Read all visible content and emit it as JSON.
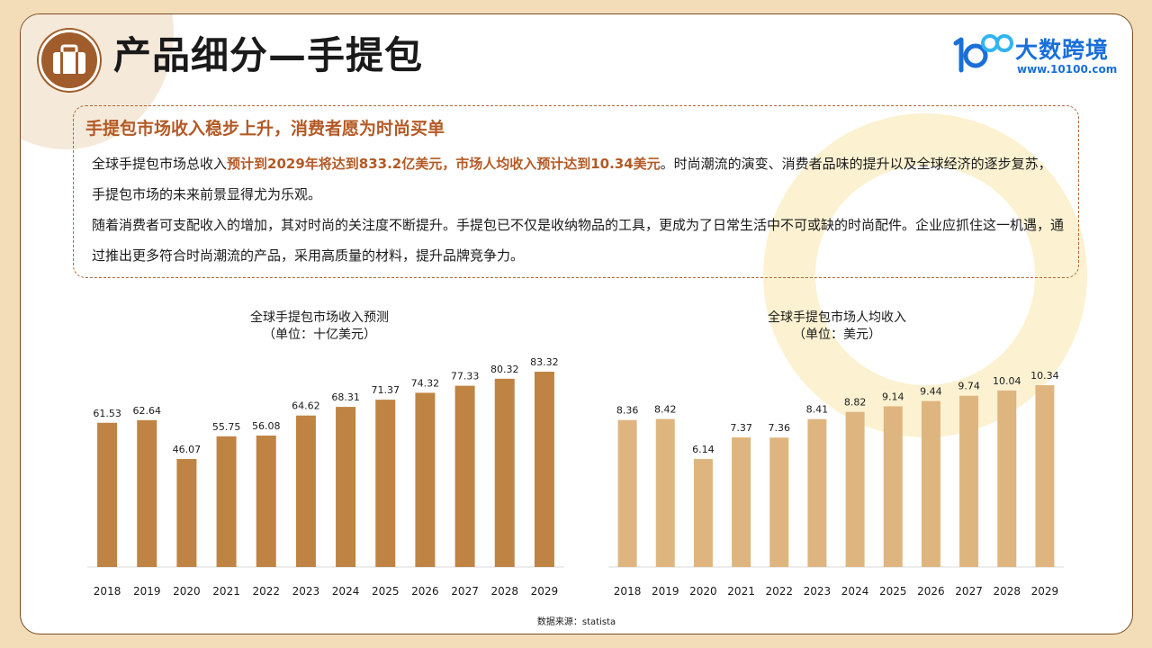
{
  "header": {
    "title": "产品细分—手提包",
    "icon": "briefcase-icon",
    "logo": {
      "text": "大数跨境",
      "url": "www.10100.com",
      "mark": "10100"
    }
  },
  "summary": {
    "heading": "手提包市场收入稳步上升，消费者愿为时尚买单",
    "p1_prefix": "全球手提包市场总收入",
    "p1_highlight": "预计到2029年将达到833.2亿美元，市场人均收入预计达到10.34美元",
    "p1_suffix": "。时尚潮流的演变、消费者品味的提升以及全球经济的逐步复苏，手提包市场的未来前景显得尤为乐观。",
    "p2": "随着消费者可支配收入的增加，其对时尚的关注度不断提升。手提包已不仅是收纳物品的工具，更成为了日常生活中不可或缺的时尚配件。企业应抓住这一机遇，通过推出更多符合时尚潮流的产品，采用高质量的材料，提升品牌竞争力。"
  },
  "source": "数据来源：statista",
  "colors": {
    "accent": "#b35a26",
    "bar_revenue": "#bf8443",
    "bar_per_capita": "#dfb57f",
    "icon_bg": "#a05d2b",
    "logo_blue": "#1a6fd8"
  },
  "chart_data": [
    {
      "type": "bar",
      "title": "全球手提包市场收入预测",
      "subtitle": "（单位：十亿美元）",
      "categories": [
        "2018",
        "2019",
        "2020",
        "2021",
        "2022",
        "2023",
        "2024",
        "2025",
        "2026",
        "2027",
        "2028",
        "2029"
      ],
      "values": [
        61.53,
        62.64,
        46.07,
        55.75,
        56.08,
        64.62,
        68.31,
        71.37,
        74.32,
        77.33,
        80.32,
        83.32
      ],
      "value_labels": [
        "61.53",
        "62.64",
        "46.07",
        "55.75",
        "56.08",
        "64.62",
        "68.31",
        "71.37",
        "74.32",
        "77.33",
        "80.32",
        "83.32"
      ],
      "ylim": [
        0,
        83.32
      ],
      "grid": false,
      "color": "#bf8443"
    },
    {
      "type": "bar",
      "title": "全球手提包市场人均收入",
      "subtitle": "（单位：美元）",
      "categories": [
        "2018",
        "2019",
        "2020",
        "2021",
        "2022",
        "2023",
        "2024",
        "2025",
        "2026",
        "2027",
        "2028",
        "2029"
      ],
      "values": [
        8.36,
        8.42,
        6.14,
        7.37,
        7.36,
        8.41,
        8.82,
        9.14,
        9.44,
        9.74,
        10.04,
        10.34
      ],
      "value_labels": [
        "8.36",
        "8.42",
        "6.14",
        "7.37",
        "7.36",
        "8.41",
        "8.82",
        "9.14",
        "9.44",
        "9.74",
        "10.04",
        "10.34"
      ],
      "ylim": [
        0,
        10.34
      ],
      "grid": false,
      "color": "#dfb57f"
    }
  ]
}
